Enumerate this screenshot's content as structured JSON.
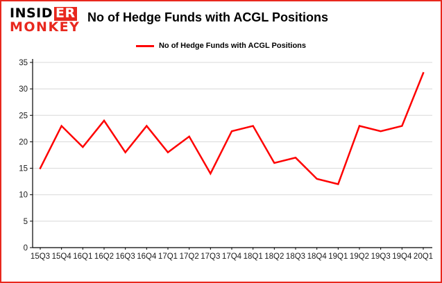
{
  "brand": {
    "line1_part1": "INSID",
    "line1_part2": "ER",
    "line2": "MONKEY"
  },
  "header": {
    "title": "No of Hedge Funds with ACGL Positions"
  },
  "legend": {
    "label": "No of Hedge Funds with ACGL Positions"
  },
  "colors": {
    "line": "#fe0000",
    "grid": "#d8d8d8",
    "axis": "#000000",
    "border": "#e8281e",
    "logo_red": "#e8281e",
    "tick_text": "#1a1a1a"
  },
  "chart_data": {
    "type": "line",
    "title": "No of Hedge Funds with ACGL Positions",
    "categories": [
      "15Q3",
      "15Q4",
      "16Q1",
      "16Q2",
      "16Q3",
      "16Q4",
      "17Q1",
      "17Q2",
      "17Q3",
      "17Q4",
      "18Q1",
      "18Q2",
      "18Q3",
      "18Q4",
      "19Q1",
      "19Q2",
      "19Q3",
      "19Q4",
      "20Q1"
    ],
    "values": [
      15,
      23,
      19,
      24,
      18,
      23,
      18,
      21,
      14,
      22,
      23,
      16,
      17,
      13,
      12,
      23,
      22,
      23,
      33
    ],
    "xlabel": "",
    "ylabel": "",
    "ylim": [
      0,
      35
    ],
    "ytick_step": 5,
    "grid": true,
    "legend_position": "top"
  }
}
